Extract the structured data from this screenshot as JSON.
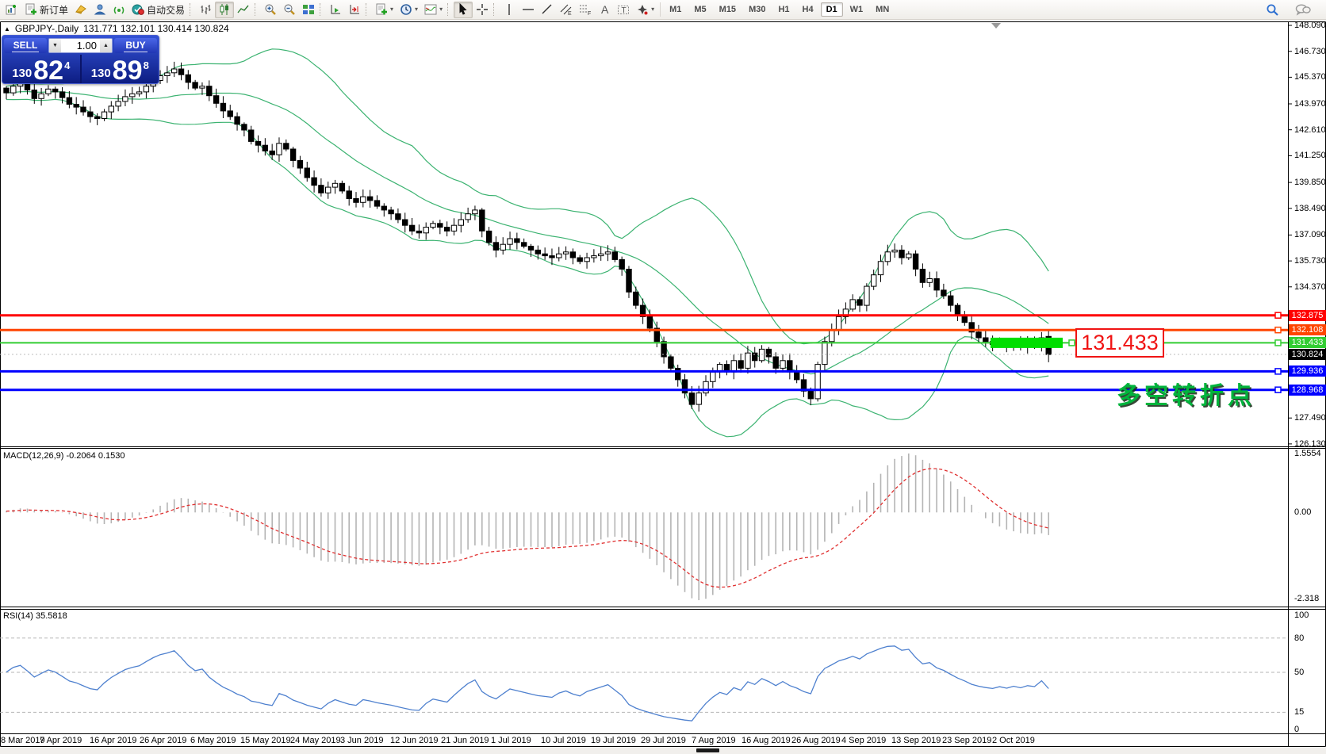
{
  "icons": {
    "caret": "▾",
    "caret_down": "▼",
    "caret_up": "▲",
    "symbol_marker": "▲",
    "text_tool": "A",
    "label_tool": "T",
    "channel_suffix": "E",
    "fibo_suffix": "F"
  },
  "toolbar": {
    "new_order_label": "新订单",
    "autotrading_label": "自动交易",
    "timeframes": [
      "M1",
      "M5",
      "M15",
      "M30",
      "H1",
      "H4",
      "D1",
      "W1",
      "MN"
    ],
    "active_timeframe": "D1"
  },
  "quote_bar": {
    "symbol": "GBPJPY-,Daily",
    "ohlc": "131.771 132.101 130.414 130.824"
  },
  "one_click": {
    "sell_label": "SELL",
    "buy_label": "BUY",
    "volume": "1.00",
    "sell_price_small": "130",
    "sell_price_big": "82",
    "sell_price_sup": "4",
    "buy_price_small": "130",
    "buy_price_big": "89",
    "buy_price_sup": "8"
  },
  "main_chart": {
    "axis_ticks": [
      {
        "label": "148.090",
        "price": 148.09
      },
      {
        "label": "146.730",
        "price": 146.73
      },
      {
        "label": "145.370",
        "price": 145.37
      },
      {
        "label": "143.970",
        "price": 143.97
      },
      {
        "label": "142.610",
        "price": 142.61
      },
      {
        "label": "141.250",
        "price": 141.25
      },
      {
        "label": "139.850",
        "price": 139.85
      },
      {
        "label": "138.490",
        "price": 138.49
      },
      {
        "label": "137.090",
        "price": 137.09
      },
      {
        "label": "135.730",
        "price": 135.73
      },
      {
        "label": "134.370",
        "price": 134.37
      },
      {
        "label": "127.490",
        "price": 127.49
      },
      {
        "label": "126.130",
        "price": 126.13
      }
    ],
    "hlines": [
      {
        "label": "132.875",
        "price": 132.875,
        "color": "#ff0000",
        "width": 3
      },
      {
        "label": "132.108",
        "price": 132.108,
        "color": "#ff4500",
        "width": 3
      },
      {
        "label": "131.433",
        "price": 131.433,
        "color": "#32cd32",
        "width": 2
      },
      {
        "label": "129.936",
        "price": 129.936,
        "color": "#0000ff",
        "width": 3
      },
      {
        "label": "128.968",
        "price": 128.968,
        "color": "#0000ff",
        "width": 3
      }
    ],
    "current_price": {
      "label": "130.824",
      "price": 130.824,
      "bg": "#000000"
    },
    "highlight_bar": {
      "price": 131.433,
      "color": "#00de00"
    },
    "callout": {
      "text": "131.433"
    },
    "annotation": {
      "text": "多空转折点"
    }
  },
  "chart_data": {
    "type": "candlestick",
    "symbol": "GBPJPY-",
    "timeframe": "Daily",
    "ohlc_today": {
      "open": 131.771,
      "high": 132.101,
      "low": 130.414,
      "close": 130.824
    },
    "price_axis_range": [
      126.13,
      148.09
    ],
    "candle_up_color": "#ffffff",
    "candle_down_color": "#000000",
    "closes": [
      144.55,
      144.9,
      145.05,
      144.7,
      144.25,
      144.5,
      144.75,
      144.6,
      144.3,
      143.95,
      143.8,
      143.55,
      143.3,
      143.2,
      143.55,
      143.85,
      144.1,
      144.35,
      144.5,
      144.6,
      144.9,
      145.2,
      145.45,
      145.6,
      145.8,
      145.5,
      145.1,
      144.8,
      144.9,
      144.4,
      144.0,
      143.6,
      143.3,
      142.9,
      142.6,
      142.0,
      141.8,
      141.5,
      141.3,
      141.9,
      141.6,
      141.0,
      140.6,
      140.1,
      139.7,
      139.3,
      139.6,
      139.8,
      139.4,
      139.0,
      138.8,
      139.1,
      138.9,
      138.6,
      138.4,
      138.2,
      137.9,
      137.6,
      137.3,
      137.2,
      137.5,
      137.7,
      137.5,
      137.3,
      137.6,
      137.9,
      138.2,
      138.4,
      137.3,
      136.7,
      136.3,
      136.6,
      136.9,
      136.7,
      136.5,
      136.3,
      136.1,
      136.0,
      135.9,
      136.1,
      136.2,
      135.9,
      135.7,
      135.9,
      136.0,
      136.1,
      136.2,
      135.8,
      135.3,
      134.1,
      133.4,
      132.8,
      132.2,
      131.5,
      130.7,
      130.1,
      129.5,
      128.8,
      128.2,
      128.8,
      129.4,
      129.9,
      130.3,
      129.9,
      130.5,
      130.1,
      130.9,
      130.5,
      131.1,
      130.7,
      130.1,
      130.5,
      129.9,
      129.5,
      128.9,
      128.5,
      130.3,
      131.5,
      132.1,
      132.8,
      133.2,
      133.7,
      133.4,
      134.4,
      135.0,
      135.7,
      136.2,
      136.3,
      135.9,
      136.1,
      135.3,
      134.6,
      134.8,
      134.2,
      133.9,
      133.4,
      132.9,
      132.5,
      132.0,
      131.7,
      131.5,
      131.35,
      131.5,
      131.3,
      131.45,
      131.25,
      131.4,
      131.3,
      131.7,
      130.824
    ],
    "bollinger": {
      "period": 20,
      "deviation": 2,
      "color": "#3cb371"
    },
    "macd": {
      "label": "MACD(12,26,9) -0.2064 0.1530",
      "params": [
        12,
        26,
        9
      ],
      "main_value": "-0.2064",
      "signal_value": "0.1530",
      "axis": [
        "1.5554",
        "0.00",
        "-2.318"
      ],
      "axis_max": 1.5554,
      "axis_min": -2.318,
      "histogram_color": "#b4b4b4",
      "signal_color": "#e03030"
    },
    "rsi": {
      "label": "RSI(14) 35.5818",
      "period": 14,
      "value": "35.5818",
      "levels": [
        80,
        50,
        15
      ],
      "axis": [
        "100",
        "80",
        "50",
        "15",
        "0"
      ],
      "color": "#4f81cf"
    },
    "dates": [
      "8 Mar 2019",
      "7 Apr 2019",
      "16 Apr 2019",
      "26 Apr 2019",
      "6 May 2019",
      "15 May 2019",
      "24 May 2019",
      "3 Jun 2019",
      "12 Jun 2019",
      "21 Jun 2019",
      "1 Jul 2019",
      "10 Jul 2019",
      "19 Jul 2019",
      "29 Jul 2019",
      "7 Aug 2019",
      "16 Aug 2019",
      "26 Aug 2019",
      "4 Sep 2019",
      "13 Sep 2019",
      "23 Sep 2019",
      "2 Oct 2019"
    ]
  }
}
